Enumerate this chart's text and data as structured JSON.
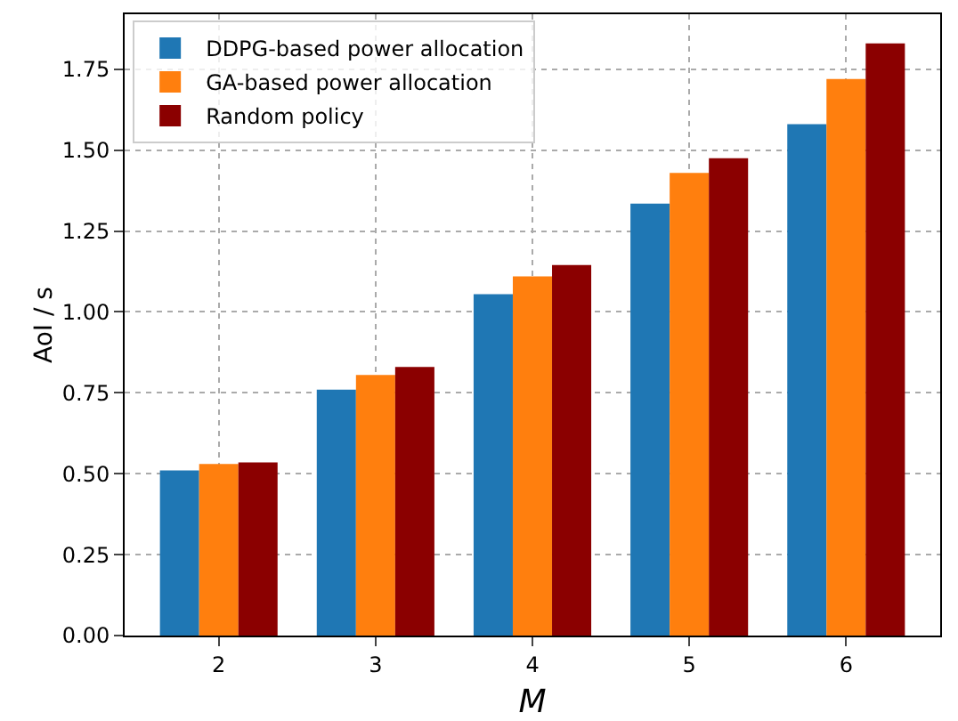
{
  "chart_data": {
    "type": "bar",
    "xlabel": "M",
    "ylabel": "AoI / s",
    "categories": [
      "2",
      "3",
      "4",
      "5",
      "6"
    ],
    "series": [
      {
        "name": "DDPG-based power allocation",
        "color": "#1f77b4",
        "values": [
          0.51,
          0.76,
          1.055,
          1.335,
          1.58
        ]
      },
      {
        "name": "GA-based power allocation",
        "color": "#ff7f0e",
        "values": [
          0.53,
          0.805,
          1.11,
          1.43,
          1.72
        ]
      },
      {
        "name": "Random policy",
        "color": "#8b0000",
        "values": [
          0.535,
          0.83,
          1.145,
          1.475,
          1.83
        ]
      }
    ],
    "ylim": [
      0,
      1.92
    ],
    "yticks": [
      {
        "value": 0,
        "label": "0.00"
      },
      {
        "value": 0.25,
        "label": "0.25"
      },
      {
        "value": 0.5,
        "label": "0.50"
      },
      {
        "value": 0.75,
        "label": "0.75"
      },
      {
        "value": 1,
        "label": "1.00"
      },
      {
        "value": 1.25,
        "label": "1.25"
      },
      {
        "value": 1.5,
        "label": "1.50"
      },
      {
        "value": 1.75,
        "label": "1.75"
      }
    ],
    "grid": true,
    "legend": "top left"
  }
}
